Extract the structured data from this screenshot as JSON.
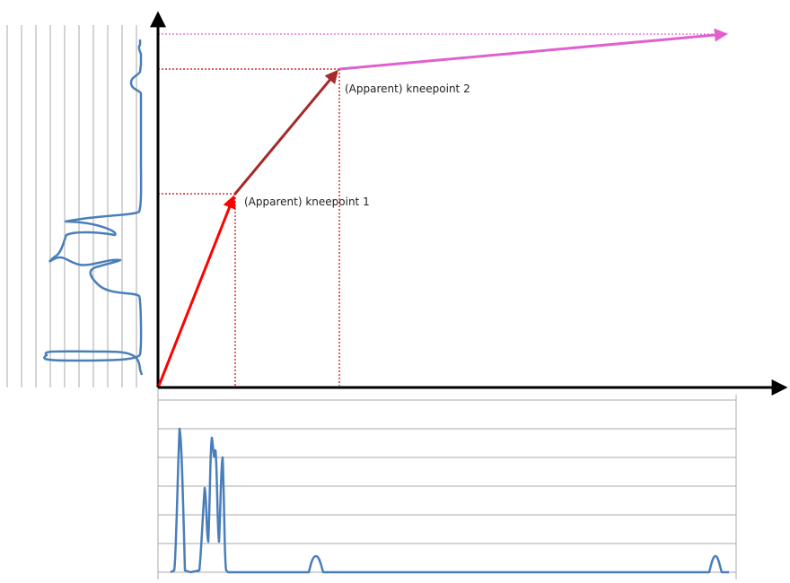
{
  "diagram": {
    "kneepoint_1_label": "(Apparent) kneepoint 1",
    "kneepoint_2_label": "(Apparent) kneepoint 2",
    "colors": {
      "segment_1": "#ff0000",
      "segment_2": "#a52a2a",
      "segment_3": "#e060d0",
      "guides_red": "#cc0000",
      "guide_pink": "#e060d0",
      "histogram": "#4a7ebb",
      "gridlines": "#aaaaaa",
      "axes": "#000000"
    }
  }
}
